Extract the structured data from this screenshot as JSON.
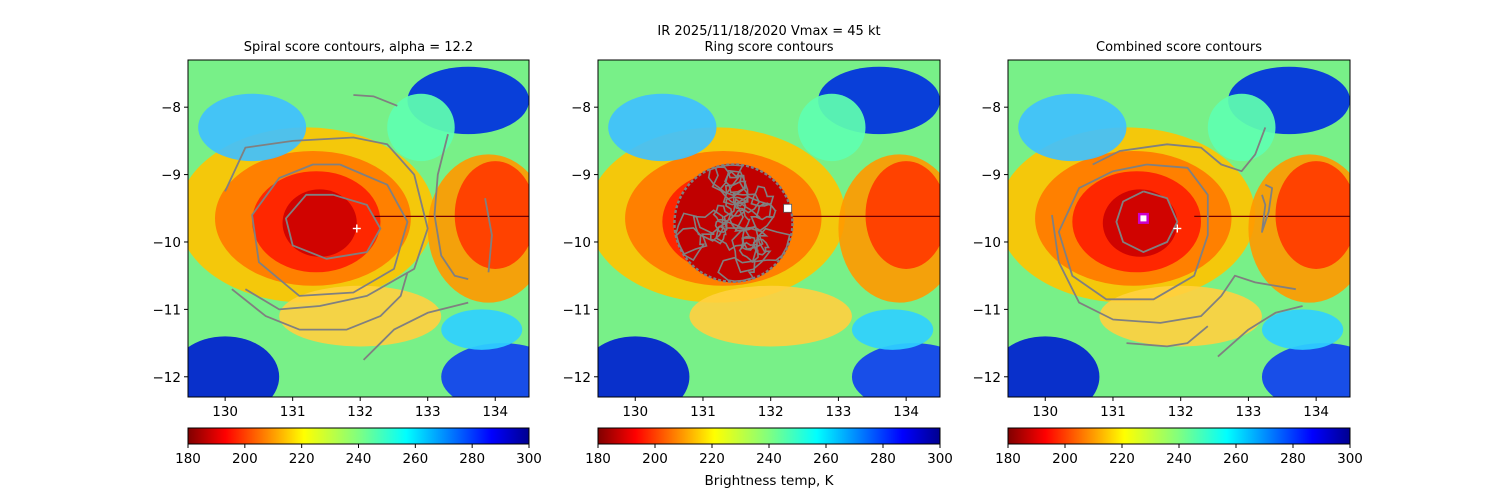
{
  "figure": {
    "suptitle": "IR  2025/11/18/2020    Vmax = 45 kt",
    "colorbar_label": "Brightness temp, K"
  },
  "colors": {
    "contour": "#808080",
    "marker": "#ffffff",
    "center_marker_edge": "#cc00cc"
  },
  "chart_data": [
    {
      "type": "heatmap",
      "title": "Spiral score contours, alpha = 12.2",
      "xlim": [
        129.45,
        134.5
      ],
      "ylim": [
        -12.3,
        -7.3
      ],
      "xticks": [
        "130",
        "131",
        "132",
        "133",
        "134"
      ],
      "yticks": [
        "−8",
        "−9",
        "−10",
        "−11",
        "−12"
      ],
      "xtick_values": [
        130,
        131,
        132,
        133,
        134
      ],
      "ytick_values": [
        -8,
        -9,
        -10,
        -11,
        -12
      ],
      "colorbar": {
        "min": 180,
        "max": 300,
        "ticks": [
          "180",
          "200",
          "220",
          "240",
          "260",
          "280",
          "300"
        ],
        "tick_values": [
          180,
          200,
          220,
          240,
          260,
          280,
          300
        ],
        "colormap": "jet_r"
      },
      "contours": [
        [
          [
            131.6,
            -9.3
          ],
          [
            132.1,
            -9.45
          ],
          [
            132.3,
            -9.8
          ],
          [
            132.1,
            -10.15
          ],
          [
            131.5,
            -10.25
          ],
          [
            131.0,
            -10.05
          ],
          [
            130.9,
            -9.65
          ],
          [
            131.2,
            -9.3
          ],
          [
            131.6,
            -9.3
          ]
        ],
        [
          [
            131.7,
            -8.85
          ],
          [
            132.4,
            -9.15
          ],
          [
            132.7,
            -9.7
          ],
          [
            132.5,
            -10.4
          ],
          [
            131.9,
            -10.75
          ],
          [
            131.1,
            -10.8
          ],
          [
            130.5,
            -10.3
          ],
          [
            130.4,
            -9.6
          ],
          [
            130.8,
            -9.05
          ],
          [
            131.3,
            -8.85
          ],
          [
            131.7,
            -8.85
          ]
        ],
        [
          [
            130.0,
            -9.25
          ],
          [
            130.3,
            -8.6
          ],
          [
            131.0,
            -8.5
          ],
          [
            131.9,
            -8.45
          ],
          [
            132.4,
            -8.55
          ],
          [
            132.8,
            -9.0
          ],
          [
            133.0,
            -9.8
          ],
          [
            132.8,
            -10.4
          ],
          [
            132.1,
            -10.8
          ],
          [
            131.4,
            -10.95
          ],
          [
            130.8,
            -11.0
          ],
          [
            130.3,
            -10.7
          ]
        ],
        [
          [
            130.1,
            -10.7
          ],
          [
            130.6,
            -11.1
          ],
          [
            131.1,
            -11.3
          ],
          [
            131.8,
            -11.3
          ],
          [
            132.3,
            -11.1
          ],
          [
            132.6,
            -10.8
          ],
          [
            132.7,
            -10.45
          ]
        ],
        [
          [
            133.3,
            -8.4
          ],
          [
            133.15,
            -9.0
          ],
          [
            133.1,
            -9.6
          ],
          [
            133.2,
            -10.2
          ],
          [
            133.4,
            -10.5
          ],
          [
            133.6,
            -10.55
          ]
        ],
        [
          [
            133.85,
            -9.35
          ],
          [
            133.95,
            -9.9
          ],
          [
            133.9,
            -10.45
          ]
        ],
        [
          [
            132.05,
            -11.75
          ],
          [
            132.5,
            -11.3
          ],
          [
            133.0,
            -11.05
          ],
          [
            133.6,
            -10.9
          ]
        ],
        [
          [
            131.9,
            -7.82
          ],
          [
            132.2,
            -7.84
          ],
          [
            132.55,
            -7.98
          ]
        ]
      ],
      "markers": [
        {
          "symbol": "plus",
          "lon": 131.95,
          "lat": -9.8
        }
      ]
    },
    {
      "type": "heatmap",
      "title": "Ring score contours",
      "xlim": [
        129.45,
        134.5
      ],
      "ylim": [
        -12.3,
        -7.3
      ],
      "xticks": [
        "130",
        "131",
        "132",
        "133",
        "134"
      ],
      "yticks": [
        "−8",
        "−9",
        "−10",
        "−11",
        "−12"
      ],
      "xtick_values": [
        130,
        131,
        132,
        133,
        134
      ],
      "ytick_values": [
        -8,
        -9,
        -10,
        -11,
        -12
      ],
      "colorbar": {
        "min": 180,
        "max": 300,
        "ticks": [
          "180",
          "200",
          "220",
          "240",
          "260",
          "280",
          "300"
        ],
        "tick_values": [
          180,
          200,
          220,
          240,
          260,
          280,
          300
        ],
        "colormap": "jet_r"
      },
      "ring_region": {
        "lon": 131.45,
        "lat": -9.72,
        "radius_deg": 0.88
      },
      "contours": [],
      "markers": [
        {
          "symbol": "square",
          "lon": 132.25,
          "lat": -9.5
        }
      ]
    },
    {
      "type": "heatmap",
      "title": "Combined score contours",
      "xlim": [
        129.45,
        134.5
      ],
      "ylim": [
        -12.3,
        -7.3
      ],
      "xticks": [
        "130",
        "131",
        "132",
        "133",
        "134"
      ],
      "yticks": [
        "−8",
        "−9",
        "−10",
        "−11",
        "−12"
      ],
      "xtick_values": [
        130,
        131,
        132,
        133,
        134
      ],
      "ytick_values": [
        -8,
        -9,
        -10,
        -11,
        -12
      ],
      "colorbar": {
        "min": 180,
        "max": 300,
        "ticks": [
          "180",
          "200",
          "220",
          "240",
          "260",
          "280",
          "300"
        ],
        "tick_values": [
          180,
          200,
          220,
          240,
          260,
          280,
          300
        ],
        "colormap": "jet_r"
      },
      "contours": [
        [
          [
            131.45,
            -9.25
          ],
          [
            131.8,
            -9.35
          ],
          [
            131.95,
            -9.7
          ],
          [
            131.8,
            -10.0
          ],
          [
            131.45,
            -10.15
          ],
          [
            131.15,
            -10.0
          ],
          [
            131.05,
            -9.7
          ],
          [
            131.15,
            -9.4
          ],
          [
            131.45,
            -9.25
          ]
        ],
        [
          [
            131.5,
            -8.85
          ],
          [
            132.1,
            -8.9
          ],
          [
            132.4,
            -9.3
          ],
          [
            132.4,
            -9.9
          ],
          [
            132.2,
            -10.5
          ],
          [
            131.6,
            -10.85
          ],
          [
            130.9,
            -10.85
          ],
          [
            130.4,
            -10.5
          ],
          [
            130.2,
            -9.85
          ],
          [
            130.5,
            -9.2
          ],
          [
            131.0,
            -8.95
          ],
          [
            131.5,
            -8.85
          ]
        ],
        [
          [
            130.7,
            -8.85
          ],
          [
            131.1,
            -8.65
          ],
          [
            131.8,
            -8.55
          ],
          [
            132.3,
            -8.6
          ],
          [
            132.6,
            -8.85
          ],
          [
            132.9,
            -8.95
          ],
          [
            133.1,
            -8.7
          ],
          [
            133.25,
            -8.3
          ]
        ],
        [
          [
            130.1,
            -9.6
          ],
          [
            130.2,
            -10.3
          ],
          [
            130.5,
            -10.9
          ],
          [
            131.0,
            -11.15
          ],
          [
            131.7,
            -11.2
          ],
          [
            132.3,
            -11.1
          ],
          [
            132.6,
            -10.8
          ],
          [
            132.8,
            -10.5
          ],
          [
            133.1,
            -10.6
          ],
          [
            133.7,
            -10.7
          ]
        ],
        [
          [
            132.4,
            -11.25
          ],
          [
            132.1,
            -11.5
          ],
          [
            131.8,
            -11.55
          ],
          [
            131.2,
            -11.5
          ]
        ],
        [
          [
            132.55,
            -11.7
          ],
          [
            133.0,
            -11.3
          ],
          [
            133.4,
            -11.05
          ],
          [
            133.8,
            -10.95
          ]
        ],
        [
          [
            133.25,
            -9.15
          ],
          [
            133.35,
            -9.2
          ],
          [
            133.3,
            -9.55
          ],
          [
            133.2,
            -9.85
          ],
          [
            133.25,
            -9.45
          ],
          [
            133.2,
            -9.3
          ]
        ]
      ],
      "markers": [
        {
          "symbol": "plus",
          "lon": 131.95,
          "lat": -9.8
        },
        {
          "symbol": "center-square",
          "lon": 131.45,
          "lat": -9.65
        }
      ]
    }
  ]
}
